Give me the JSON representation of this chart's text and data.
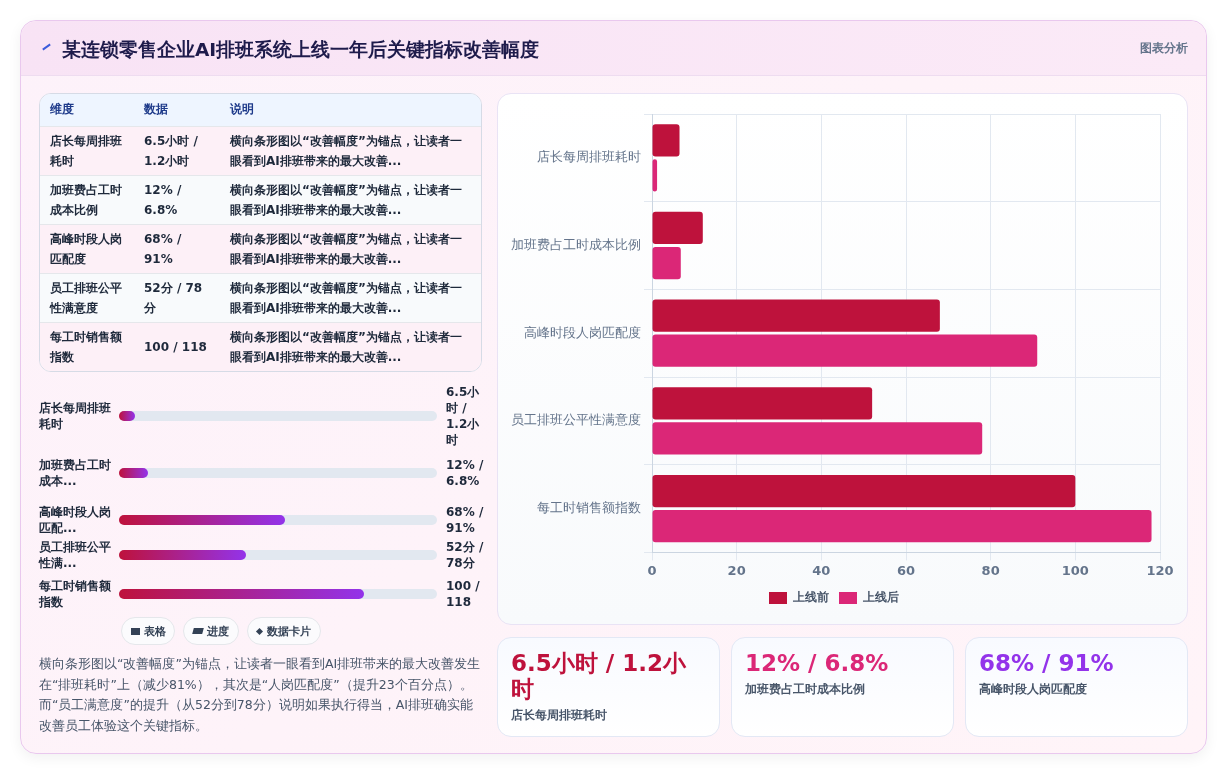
{
  "chart_data": [
    {
      "type": "other",
      "title": "某连锁零售企业AI排班系统上线一年后关键指标改善幅度",
      "annotations": [
        "图表分析"
      ]
    },
    {
      "type": "bar",
      "orientation": "horizontal",
      "categories": [
        "店长每周排班耗时",
        "加班费占工时成本比例",
        "高峰时段人岗匹配度",
        "员工排班公平性满意度",
        "每工时销售额指数"
      ],
      "series": [
        {
          "name": "上线前",
          "color": "#be123c",
          "values": [
            6.5,
            12,
            68,
            52,
            100
          ]
        },
        {
          "name": "上线后",
          "color": "#db2777",
          "values": [
            1.2,
            6.8,
            91,
            78,
            118
          ]
        }
      ],
      "xlim": [
        0,
        120
      ],
      "xticks": [
        0,
        20,
        40,
        60,
        80,
        100,
        120
      ],
      "grid": true,
      "legend": "bottom"
    },
    {
      "type": "other",
      "categories": [
        "维度",
        "数据",
        "说明"
      ],
      "y_categories": [
        "店长每周排班耗时",
        "加班费占工时成本比例",
        "高峰时段人岗匹配度",
        "员工排班公平性满意度",
        "每工时销售额指数"
      ],
      "cell_labels": [
        [
          "6.5小时 / 1.2小时",
          "横向条形图以“改善幅度”为锚点，让读者一眼看到AI排班带来的最大改善..."
        ],
        [
          "12% / 6.8%",
          "横向条形图以“改善幅度”为锚点，让读者一眼看到AI排班带来的最大改善..."
        ],
        [
          "68% / 91%",
          "横向条形图以“改善幅度”为锚点，让读者一眼看到AI排班带来的最大改善..."
        ],
        [
          "52分 / 78分",
          "横向条形图以“改善幅度”为锚点，让读者一眼看到AI排班带来的最大改善..."
        ],
        [
          "100 / 118",
          "横向条形图以“改善幅度”为锚点，让读者一眼看到AI排班带来的最大改善..."
        ]
      ]
    },
    {
      "type": "bar",
      "orientation": "horizontal",
      "xlim": [
        0,
        130
      ],
      "categories": [
        "店长每周排班耗时",
        "加班费占工时成本...",
        "高峰时段人岗匹配...",
        "员工排班公平性满...",
        "每工时销售额指数"
      ],
      "values": [
        6.5,
        12,
        68,
        52,
        100
      ],
      "value_labels": [
        "6.5小时 / 1.2小时",
        "12% / 6.8%",
        "68% / 91%",
        "52分 / 78分",
        "100 / 118"
      ],
      "color": "#be123c"
    },
    {
      "type": "other",
      "annotations": [
        "表格",
        "进度",
        "数据卡片",
        "横向条形图以“改善幅度”为锚点，让读者一眼看到AI排班带来的最大改善发生在“排班耗时”上（减少81%），其次是“人岗匹配度”（提升23个百分点）。而“员工满意度”的提升（从52分到78分）说明如果执行得当，AI排班确实能改善员工体验这个关键指标。"
      ]
    },
    {
      "type": "other",
      "categories": [
        "店长每周排班耗时",
        "加班费占工时成本比例",
        "高峰时段人岗匹配度"
      ],
      "value_labels": [
        "6.5小时 / 1.2小时",
        "12% / 6.8%",
        "68% / 91%"
      ]
    }
  ]
}
